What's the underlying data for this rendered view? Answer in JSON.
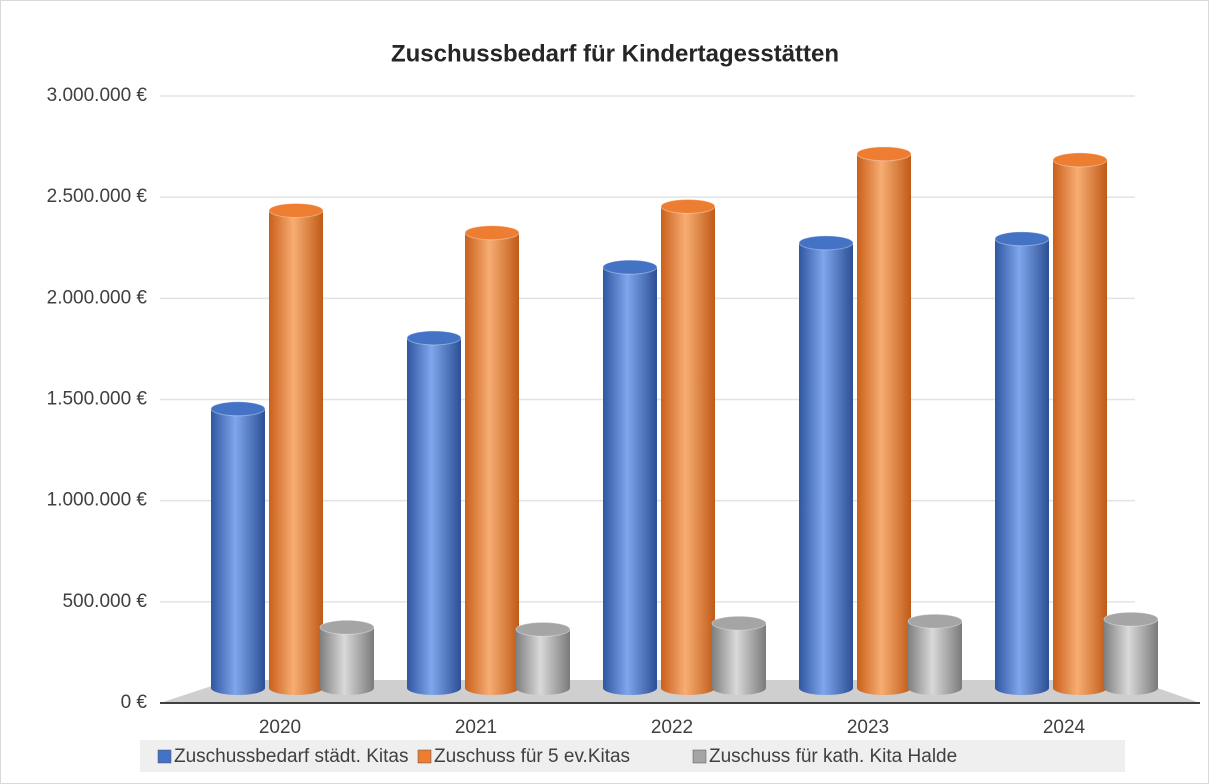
{
  "chart_data": {
    "type": "bar",
    "title": "Zuschussbedarf für Kindertagesstätten",
    "categories": [
      "2020",
      "2021",
      "2022",
      "2023",
      "2024"
    ],
    "series": [
      {
        "name": "Zuschussbedarf städt. Kitas",
        "color": "#4472c4",
        "values": [
          1380000,
          1730000,
          2080000,
          2200000,
          2220000
        ]
      },
      {
        "name": "Zuschuss für 5 ev.Kitas",
        "color": "#ed7d31",
        "values": [
          2360000,
          2250000,
          2380000,
          2640000,
          2610000
        ]
      },
      {
        "name": "Zuschuss für kath. Kita Halde",
        "color": "#a5a5a5",
        "values": [
          300000,
          290000,
          320000,
          330000,
          340000
        ]
      }
    ],
    "ylim": [
      0,
      3000000
    ],
    "yticks": [
      {
        "value": 0,
        "label": "0 €"
      },
      {
        "value": 500000,
        "label": "500.000 €"
      },
      {
        "value": 1000000,
        "label": "1.000.000 €"
      },
      {
        "value": 1500000,
        "label": "1.500.000 €"
      },
      {
        "value": 2000000,
        "label": "2.000.000 €"
      },
      {
        "value": 2500000,
        "label": "2.500.000 €"
      },
      {
        "value": 3000000,
        "label": "3.000.000 €"
      }
    ],
    "grid": true,
    "legend": "bottom"
  }
}
